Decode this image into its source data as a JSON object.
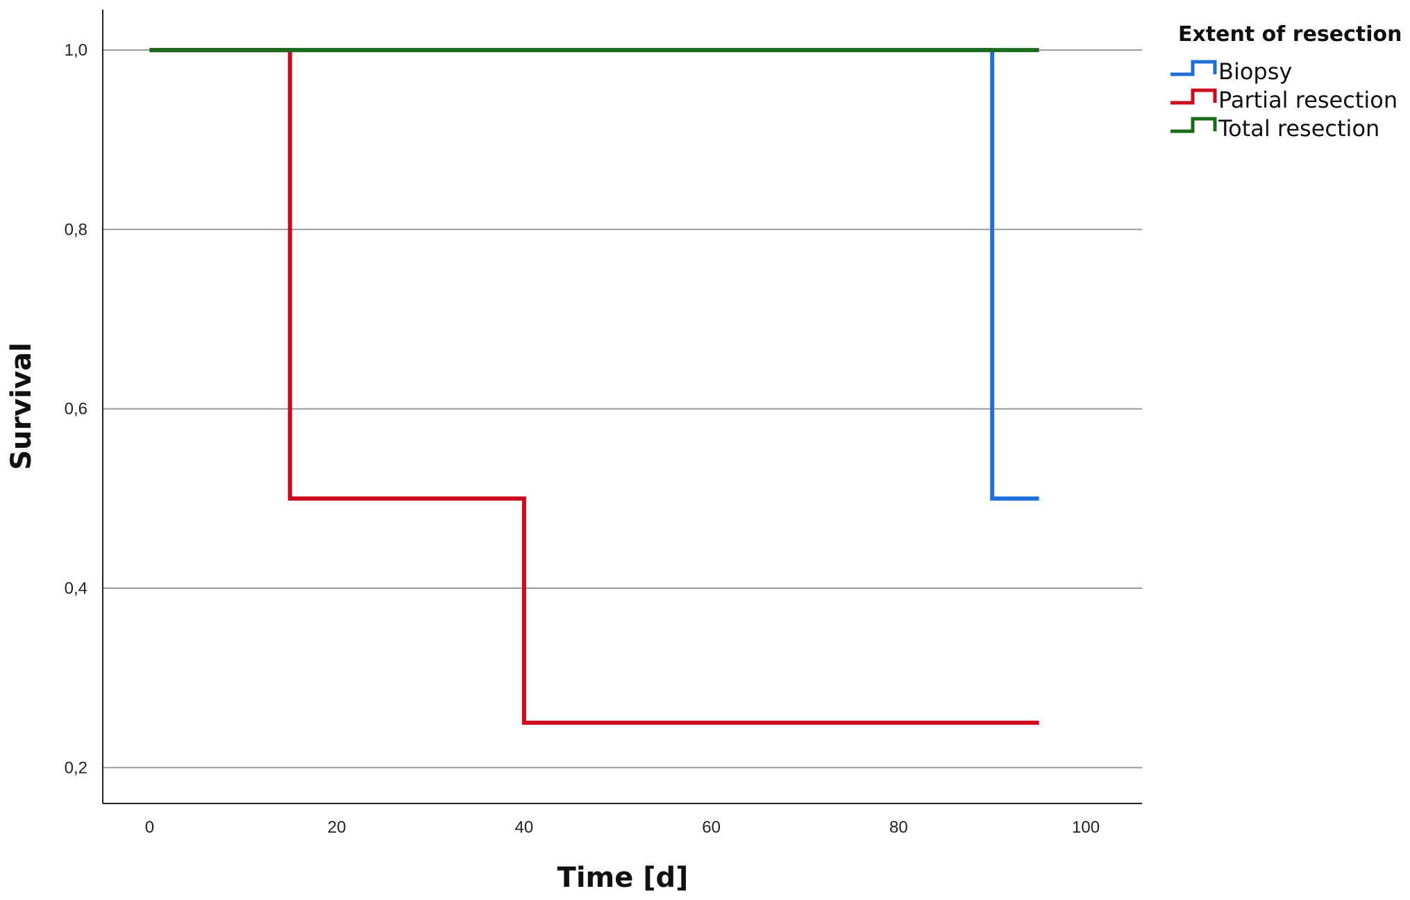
{
  "chart_data": {
    "type": "line",
    "step": true,
    "xlabel": "Time [d]",
    "ylabel": "Survival",
    "xlim": [
      -5,
      106
    ],
    "ylim": [
      0.16,
      1.045
    ],
    "xticks": [
      0,
      20,
      40,
      60,
      80,
      100
    ],
    "xtick_labels": [
      "0",
      "20",
      "40",
      "60",
      "80",
      "100"
    ],
    "yticks": [
      0.2,
      0.4,
      0.6,
      0.8,
      1.0
    ],
    "ytick_labels": [
      "0,2",
      "0,4",
      "0,6",
      "0,8",
      "1,0"
    ],
    "grid": "horizontal",
    "legend": {
      "title": "Extent of resection",
      "placement": "right"
    },
    "series": [
      {
        "name": "Biopsy",
        "color": "#1f6fd6",
        "points": [
          [
            0,
            1.0
          ],
          [
            90,
            1.0
          ],
          [
            90,
            0.5
          ],
          [
            95,
            0.5
          ]
        ]
      },
      {
        "name": "Partial resection",
        "color": "#cc0a1e",
        "points": [
          [
            0,
            1.0
          ],
          [
            15,
            1.0
          ],
          [
            15,
            0.5
          ],
          [
            40,
            0.5
          ],
          [
            40,
            0.25
          ],
          [
            95,
            0.25
          ]
        ]
      },
      {
        "name": "Total resection",
        "color": "#1c6b1c",
        "points": [
          [
            0,
            1.0
          ],
          [
            95,
            1.0
          ]
        ]
      }
    ]
  }
}
